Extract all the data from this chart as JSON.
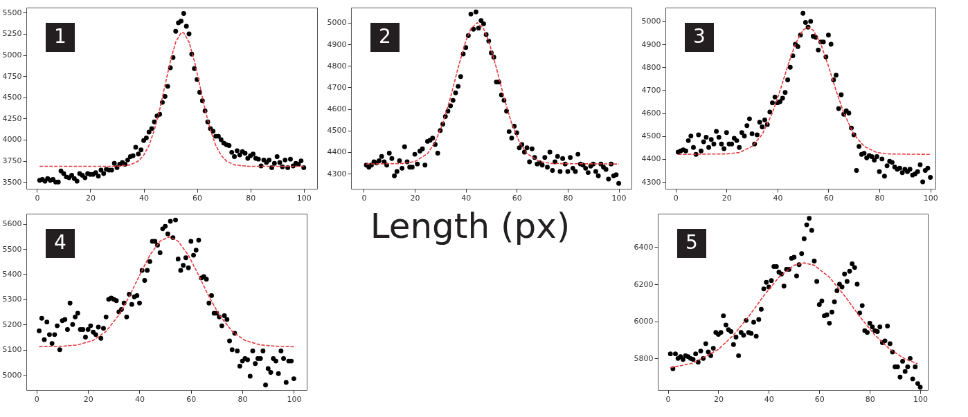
{
  "chart_data": [
    {
      "type": "scatter",
      "title": "1",
      "xlim": [
        -4,
        105
      ],
      "ylim": [
        3420,
        5560
      ],
      "xticks": [
        0,
        20,
        40,
        60,
        80,
        100
      ],
      "yticks": [
        3500,
        3750,
        4000,
        4250,
        4500,
        4750,
        5000,
        5250,
        5500
      ],
      "series": [
        {
          "type": "scatter",
          "marker": "circle",
          "color": "#000000",
          "x": [
            1,
            2,
            3,
            4,
            5,
            6,
            7,
            8,
            9,
            10,
            11,
            12,
            13,
            14,
            15,
            16,
            17,
            18,
            19,
            20,
            21,
            22,
            23,
            24,
            25,
            26,
            27,
            28,
            29,
            30,
            31,
            32,
            33,
            34,
            35,
            36,
            37,
            38,
            39,
            40,
            41,
            42,
            43,
            44,
            45,
            46,
            47,
            48,
            49,
            50,
            51,
            52,
            53,
            54,
            55,
            56,
            57,
            58,
            59,
            60,
            61,
            62,
            63,
            64,
            65,
            66,
            67,
            68,
            69,
            70,
            71,
            72,
            73,
            74,
            75,
            76,
            77,
            78,
            79,
            80,
            81,
            82,
            83,
            84,
            85,
            86,
            87,
            88,
            89,
            90,
            91,
            92,
            93,
            94,
            95,
            96,
            97,
            98,
            99,
            100
          ],
          "values": [
            3520,
            3530,
            3510,
            3540,
            3520,
            3530,
            3500,
            3500,
            3630,
            3600,
            3560,
            3550,
            3580,
            3540,
            3510,
            3600,
            3580,
            3550,
            3600,
            3590,
            3590,
            3610,
            3570,
            3640,
            3600,
            3650,
            3640,
            3640,
            3720,
            3670,
            3710,
            3730,
            3710,
            3760,
            3800,
            3810,
            3910,
            3830,
            3880,
            3990,
            4020,
            4090,
            4130,
            4210,
            4280,
            4300,
            4440,
            4510,
            4630,
            4850,
            4970,
            5280,
            5380,
            5400,
            5490,
            5340,
            5250,
            5010,
            4840,
            4710,
            4560,
            4460,
            4340,
            4210,
            4130,
            4100,
            4040,
            4040,
            4000,
            3960,
            3940,
            3930,
            3850,
            3800,
            3870,
            3820,
            3860,
            3840,
            3780,
            3810,
            3830,
            3780,
            3770,
            3690,
            3760,
            3730,
            3760,
            3670,
            3720,
            3800,
            3730,
            3680,
            3760,
            3670,
            3770,
            3690,
            3720,
            3710,
            3750,
            3670
          ]
        },
        {
          "type": "line",
          "color": "#e8383d",
          "line_style": "dashed",
          "x": [
            1,
            20,
            30,
            35,
            38,
            40,
            42,
            44,
            46,
            48,
            50,
            52,
            54,
            55,
            57,
            59,
            61,
            63,
            65,
            67,
            69,
            71,
            74,
            79,
            100
          ],
          "values": [
            3685,
            3685,
            3686,
            3703,
            3748,
            3816,
            3933,
            4115,
            4357,
            4644,
            4928,
            5153,
            5263,
            5263,
            5153,
            4928,
            4644,
            4357,
            4115,
            3933,
            3816,
            3748,
            3703,
            3686,
            3685
          ]
        }
      ]
    },
    {
      "type": "scatter",
      "title": "2",
      "xlabel": "Length (px)",
      "xlim": [
        -5,
        105
      ],
      "ylim": [
        4230,
        5070
      ],
      "xticks": [
        0,
        20,
        40,
        60,
        80,
        100
      ],
      "yticks": [
        4300,
        4400,
        4500,
        4600,
        4700,
        4800,
        4900,
        5000
      ],
      "series": [
        {
          "type": "scatter",
          "marker": "circle",
          "color": "#000000",
          "x": [
            1,
            2,
            3,
            4,
            5,
            6,
            7,
            8,
            9,
            10,
            11,
            12,
            13,
            14,
            15,
            16,
            17,
            18,
            19,
            20,
            21,
            22,
            23,
            24,
            25,
            26,
            27,
            28,
            29,
            30,
            31,
            32,
            33,
            34,
            35,
            36,
            37,
            38,
            39,
            40,
            41,
            42,
            43,
            44,
            45,
            46,
            47,
            48,
            49,
            50,
            51,
            52,
            53,
            54,
            55,
            56,
            57,
            58,
            59,
            60,
            61,
            62,
            63,
            64,
            65,
            66,
            67,
            68,
            69,
            70,
            71,
            72,
            73,
            74,
            75,
            76,
            77,
            78,
            79,
            80,
            81,
            82,
            83,
            84,
            85,
            86,
            87,
            88,
            89,
            90,
            91,
            92,
            93,
            94,
            95,
            96,
            97,
            98,
            99,
            100
          ],
          "values": [
            4340,
            4330,
            4340,
            4355,
            4350,
            4360,
            4380,
            4355,
            4340,
            4395,
            4370,
            4290,
            4310,
            4360,
            4325,
            4425,
            4355,
            4330,
            4330,
            4390,
            4345,
            4405,
            4415,
            4340,
            4450,
            4455,
            4465,
            4435,
            4395,
            4500,
            4530,
            4565,
            4590,
            4615,
            4640,
            4675,
            4705,
            4750,
            4855,
            4885,
            4940,
            5040,
            4970,
            5050,
            4975,
            5010,
            4995,
            4945,
            4915,
            4860,
            4840,
            4725,
            4725,
            4665,
            4640,
            4590,
            4495,
            4465,
            4520,
            4490,
            4420,
            4435,
            4400,
            4420,
            4355,
            4415,
            4375,
            4345,
            4350,
            4340,
            4375,
            4330,
            4400,
            4315,
            4355,
            4380,
            4310,
            4370,
            4345,
            4310,
            4375,
            4325,
            4310,
            4390,
            4345,
            4340,
            4325,
            4305,
            4335,
            4345,
            4310,
            4290,
            4345,
            4330,
            4320,
            4275,
            4345,
            4290,
            4295,
            4255
          ]
        },
        {
          "type": "line",
          "color": "#e8383d",
          "line_style": "dashed",
          "x": [
            1,
            15,
            20,
            25,
            28,
            31,
            34,
            37,
            40,
            42,
            44.5,
            47,
            49,
            52,
            55,
            58,
            61,
            64,
            69,
            74,
            100
          ],
          "values": [
            4345,
            4347,
            4356,
            4393,
            4447,
            4533,
            4653,
            4791,
            4915,
            4972,
            5000,
            4972,
            4915,
            4791,
            4653,
            4533,
            4447,
            4393,
            4356,
            4347,
            4345
          ]
        }
      ]
    },
    {
      "type": "scatter",
      "title": "3",
      "xlim": [
        -4,
        102
      ],
      "ylim": [
        4270,
        5060
      ],
      "xticks": [
        0,
        20,
        40,
        60,
        80,
        100
      ],
      "yticks": [
        4300,
        4400,
        4500,
        4600,
        4700,
        4800,
        4900,
        5000
      ],
      "series": [
        {
          "type": "scatter",
          "marker": "circle",
          "color": "#000000",
          "x": [
            1,
            2,
            3,
            4,
            5,
            6,
            7,
            8,
            9,
            10,
            11,
            12,
            13,
            14,
            15,
            16,
            17,
            18,
            19,
            20,
            21,
            22,
            23,
            24,
            25,
            26,
            27,
            28,
            29,
            30,
            31,
            32,
            33,
            34,
            35,
            36,
            37,
            38,
            39,
            40,
            41,
            42,
            43,
            44,
            45,
            46,
            47,
            48,
            49,
            50,
            51,
            52,
            53,
            54,
            55,
            56,
            57,
            58,
            59,
            60,
            61,
            62,
            63,
            64,
            65,
            66,
            67,
            68,
            69,
            70,
            71,
            72,
            73,
            74,
            75,
            76,
            77,
            78,
            79,
            80,
            81,
            82,
            83,
            84,
            85,
            86,
            87,
            88,
            89,
            90,
            91,
            92,
            93,
            94,
            95,
            96,
            97,
            98,
            99,
            100
          ],
          "values": [
            4430,
            4435,
            4440,
            4435,
            4480,
            4500,
            4450,
            4420,
            4505,
            4435,
            4475,
            4495,
            4450,
            4485,
            4465,
            4520,
            4495,
            4465,
            4445,
            4515,
            4465,
            4465,
            4490,
            4480,
            4450,
            4515,
            4500,
            4545,
            4575,
            4510,
            4465,
            4505,
            4560,
            4540,
            4570,
            4550,
            4605,
            4645,
            4670,
            4645,
            4650,
            4665,
            4690,
            4745,
            4800,
            4850,
            4900,
            4890,
            4940,
            5035,
            4995,
            4975,
            5000,
            4935,
            4930,
            4875,
            4910,
            4910,
            4845,
            4940,
            4900,
            4745,
            4765,
            4620,
            4680,
            4595,
            4610,
            4600,
            4535,
            4505,
            4350,
            4455,
            4420,
            4425,
            4405,
            4415,
            4410,
            4395,
            4410,
            4345,
            4400,
            4325,
            4370,
            4390,
            4385,
            4365,
            4355,
            4360,
            4340,
            4355,
            4345,
            4355,
            4330,
            4335,
            4345,
            4375,
            4300,
            4350,
            4360,
            4320
          ]
        },
        {
          "type": "line",
          "color": "#e8383d",
          "line_style": "dashed",
          "x": [
            1,
            20,
            25,
            30,
            34,
            38,
            41,
            44,
            47,
            50,
            52,
            54,
            57,
            60,
            63,
            66,
            70,
            74,
            79,
            84,
            100
          ],
          "values": [
            4420,
            4422,
            4428,
            4455,
            4507,
            4601,
            4698,
            4805,
            4901,
            4962,
            4975,
            4962,
            4901,
            4805,
            4698,
            4601,
            4507,
            4455,
            4428,
            4422,
            4420
          ]
        }
      ]
    },
    {
      "type": "scatter",
      "title": "4",
      "xlim": [
        -4,
        105
      ],
      "ylim": [
        4940,
        5640
      ],
      "xticks": [
        0,
        20,
        40,
        60,
        80,
        100
      ],
      "yticks": [
        5000,
        5100,
        5200,
        5300,
        5400,
        5500,
        5600
      ],
      "series": [
        {
          "type": "scatter",
          "marker": "circle",
          "color": "#000000",
          "x": [
            1,
            2,
            3,
            4,
            5,
            6,
            7,
            8,
            9,
            10,
            11,
            12,
            13,
            14,
            15,
            16,
            17,
            18,
            19,
            20,
            21,
            22,
            23,
            24,
            25,
            26,
            27,
            28,
            29,
            30,
            31,
            32,
            33,
            34,
            35,
            36,
            37,
            38,
            39,
            40,
            41,
            42,
            43,
            44,
            45,
            46,
            47,
            48,
            49,
            50,
            51,
            52,
            53,
            54,
            55,
            56,
            57,
            58,
            59,
            60,
            61,
            62,
            63,
            64,
            65,
            66,
            67,
            68,
            69,
            70,
            71,
            72,
            73,
            74,
            75,
            76,
            77,
            78,
            79,
            80,
            81,
            82,
            83,
            84,
            85,
            86,
            87,
            88,
            89,
            90,
            91,
            92,
            93,
            94,
            95,
            96,
            97,
            98,
            99,
            100
          ],
          "values": [
            5175,
            5225,
            5140,
            5210,
            5160,
            5125,
            5160,
            5195,
            5100,
            5215,
            5220,
            5180,
            5285,
            5200,
            5230,
            5245,
            5180,
            5180,
            5150,
            5180,
            5195,
            5170,
            5160,
            5190,
            5145,
            5185,
            5230,
            5300,
            5305,
            5300,
            5295,
            5250,
            5260,
            5285,
            5230,
            5320,
            5280,
            5310,
            5315,
            5285,
            5415,
            5375,
            5415,
            5450,
            5530,
            5530,
            5515,
            5485,
            5580,
            5590,
            5560,
            5610,
            5545,
            5615,
            5460,
            5415,
            5435,
            5465,
            5425,
            5530,
            5475,
            5495,
            5535,
            5385,
            5390,
            5380,
            5285,
            5315,
            5245,
            5245,
            5230,
            5195,
            5235,
            5220,
            5135,
            5100,
            5165,
            5095,
            5035,
            5055,
            5065,
            5060,
            4995,
            5095,
            5045,
            5065,
            5065,
            5095,
            4960,
            5025,
            5010,
            5065,
            5055,
            5005,
            5095,
            5065,
            4970,
            5055,
            5055,
            4985
          ]
        },
        {
          "type": "line",
          "color": "#e8383d",
          "line_style": "dashed",
          "x": [
            1,
            10,
            16,
            22,
            27,
            32,
            36,
            40,
            44,
            48,
            51.5,
            55,
            59,
            63,
            67,
            71,
            76,
            81,
            87,
            93,
            100
          ],
          "values": [
            5112,
            5114,
            5119,
            5137,
            5173,
            5238,
            5311,
            5395,
            5475,
            5531,
            5548,
            5531,
            5475,
            5395,
            5311,
            5238,
            5173,
            5137,
            5119,
            5114,
            5112
          ]
        }
      ]
    },
    {
      "type": "scatter",
      "title": "5",
      "xlim": [
        -4,
        103
      ],
      "ylim": [
        5630,
        6580
      ],
      "xticks": [
        0,
        20,
        40,
        60,
        80,
        100
      ],
      "yticks": [
        5800,
        6000,
        6200,
        6400
      ],
      "series": [
        {
          "type": "scatter",
          "marker": "circle",
          "color": "#000000",
          "x": [
            1,
            2,
            3,
            4,
            5,
            6,
            7,
            8,
            9,
            10,
            11,
            12,
            13,
            14,
            15,
            16,
            17,
            18,
            19,
            20,
            21,
            22,
            23,
            24,
            25,
            26,
            27,
            28,
            29,
            30,
            31,
            32,
            33,
            34,
            35,
            36,
            37,
            38,
            39,
            40,
            41,
            42,
            43,
            44,
            45,
            46,
            47,
            48,
            49,
            50,
            51,
            52,
            53,
            54,
            55,
            56,
            57,
            58,
            59,
            60,
            61,
            62,
            63,
            64,
            65,
            66,
            67,
            68,
            69,
            70,
            71,
            72,
            73,
            74,
            75,
            76,
            77,
            78,
            79,
            80,
            81,
            82,
            83,
            84,
            85,
            86,
            87,
            88,
            89,
            90,
            91,
            92,
            93,
            94,
            95,
            96,
            97,
            98,
            99,
            100
          ],
          "values": [
            5825,
            5745,
            5825,
            5800,
            5810,
            5795,
            5815,
            5810,
            5800,
            5795,
            5825,
            5780,
            5840,
            5800,
            5880,
            5835,
            5815,
            5855,
            5940,
            5930,
            5940,
            6030,
            5980,
            5955,
            5945,
            5875,
            5915,
            5815,
            5940,
            5925,
            6005,
            5940,
            5935,
            5995,
            5920,
            6010,
            6065,
            6175,
            6210,
            6185,
            6220,
            6295,
            6295,
            6265,
            6255,
            6190,
            6280,
            6280,
            6340,
            6345,
            6245,
            6305,
            6365,
            6445,
            6520,
            6555,
            6490,
            6325,
            6215,
            6090,
            6110,
            6030,
            6035,
            5990,
            6050,
            6105,
            6165,
            6200,
            6185,
            6255,
            6215,
            6270,
            6310,
            6290,
            6200,
            6045,
            6085,
            5950,
            5940,
            5990,
            5970,
            5950,
            5945,
            5970,
            5885,
            5895,
            5975,
            5880,
            5835,
            5755,
            5755,
            5700,
            5785,
            5730,
            5755,
            5800,
            5690,
            5755,
            5665,
            5645
          ]
        },
        {
          "type": "line",
          "color": "#e8383d",
          "line_style": "dashed",
          "x": [
            1,
            10,
            20,
            26,
            32,
            38,
            44,
            50,
            54,
            58,
            64,
            70,
            76,
            82,
            88,
            94,
            99
          ],
          "values": [
            5750,
            5775,
            5849,
            5926,
            6026,
            6138,
            6238,
            6302,
            6315,
            6302,
            6238,
            6138,
            6026,
            5926,
            5849,
            5797,
            5771
          ]
        }
      ]
    }
  ]
}
